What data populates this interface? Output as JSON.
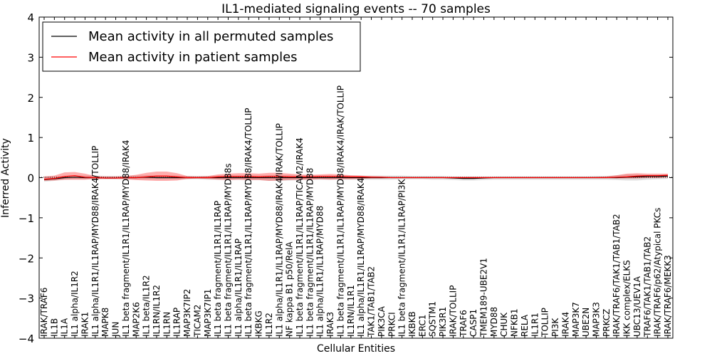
{
  "chart_data": {
    "type": "line",
    "title": "IL1-mediated signaling events -- 70 samples",
    "xlabel": "Cellular Entities",
    "ylabel": "Inferred Activity",
    "ylim": [
      -4,
      4
    ],
    "yticks": [
      -4,
      -3,
      -2,
      -1,
      0,
      1,
      2,
      3,
      4
    ],
    "grid": false,
    "legend_position": "top-left",
    "categories": [
      "IRAK/TRAF6",
      "IL1B",
      "IL1A",
      "IL1 alpha/IL1R2",
      "IRAK1",
      "IL1 alpha/IL1R1/IL1RAP/MYD88/IRAK4/TOLLIP",
      "MAPK8",
      "JUN",
      "IL1 beta fragment/IL1R1/IL1RAP/MYD88/IRAK4",
      "MAP2K6",
      "IL1 beta/IL1R2",
      "IL1RN/IL1R2",
      "IL1RN",
      "IL1RAP",
      "MAP3K7IP2",
      "TICAM2",
      "MAP3K7IP1",
      "IL1 beta fragment/IL1R1/IL1RAP",
      "IL1 beta fragment/IL1R1/IL1RAP/MYD88s",
      "IL1 alpha/IL1R1/IL1RAP",
      "IL1 beta fragment/IL1R1/IL1RAP/MYD88/IRAK4/TOLLIP",
      "IKBKG",
      "IL1R2",
      "IL1 alpha/IL1R1/IL1RAP/MYD88/IRAK4/IRAK/TOLLIP",
      "NF kappa B1 p50/RelA",
      "IL1 beta fragment/IL1R1/IL1RAP/TICAM2/IRAK4",
      "IL1 beta fragment/IL1R1/IL1RAP/MYD88",
      "IL1 alpha/IL1R1/IL1RAP/MYD88",
      "IRAK3",
      "IL1 beta fragment/IL1R1/IL1RAP/MYD88/IRAK4/IRAK/TOLLIP",
      "IL1RN/IL1R1",
      "IL1 alpha/IL1R1/IL1RAP/MYD88/IRAK4",
      "TAK1/TAB1/TAB2",
      "PIK3CA",
      "PRKCI",
      "IL1 beta fragment/IL1R1/IL1RAP/PI3K",
      "IKBKB",
      "ERC1",
      "SQSTM1",
      "PIK3R1",
      "IRAK/TOLLIP",
      "TRAF6",
      "CASP1",
      "TMEM189-UBE2V1",
      "MYD88",
      "CHUK",
      "NFKB1",
      "RELA",
      "IL1R1",
      "TOLLIP",
      "PI3K",
      "IRAK4",
      "MAP3K7",
      "UBE2N",
      "MAP3K3",
      "PRKCZ",
      "IRAK/TRAF6/TAK1/TAB1/TAB2",
      "IKK complex/ELKS",
      "UBC13/UEV1A",
      "TRAF6/TAK1/TAB1/TAB2",
      "IRAK/TRAF6/p62/Atypical PKCs",
      "IRAK/TRAF6/MEKK3"
    ],
    "series": [
      {
        "name": "Mean activity in all permuted samples",
        "color": "#000000",
        "values": [
          -0.05,
          -0.03,
          0.0,
          0.01,
          0.0,
          0.0,
          -0.01,
          -0.01,
          0.0,
          0.0,
          0.01,
          0.0,
          0.0,
          0.0,
          0.0,
          0.0,
          0.0,
          0.0,
          0.0,
          0.0,
          0.0,
          0.0,
          0.0,
          0.0,
          0.0,
          0.0,
          0.0,
          0.0,
          0.0,
          0.0,
          0.0,
          0.0,
          0.0,
          0.0,
          0.0,
          0.0,
          0.0,
          0.0,
          0.0,
          0.0,
          -0.01,
          -0.02,
          -0.02,
          -0.01,
          0.0,
          0.0,
          0.0,
          0.0,
          0.0,
          0.0,
          0.0,
          0.0,
          0.0,
          0.0,
          0.0,
          0.0,
          0.0,
          0.01,
          0.02,
          0.03,
          0.03,
          0.04
        ],
        "band_low": [
          -0.1,
          -0.08,
          -0.05,
          -0.04,
          -0.04,
          -0.04,
          -0.04,
          -0.04,
          -0.04,
          -0.04,
          -0.04,
          -0.04,
          -0.04,
          -0.04,
          -0.04,
          -0.04,
          -0.05,
          -0.05,
          -0.05,
          -0.05,
          -0.06,
          -0.06,
          -0.08,
          -0.08,
          -0.07,
          -0.06,
          -0.05,
          -0.05,
          -0.05,
          -0.05,
          -0.05,
          -0.05,
          -0.05,
          -0.05,
          -0.05,
          -0.04,
          -0.04,
          -0.04,
          -0.05,
          -0.05,
          -0.06,
          -0.07,
          -0.07,
          -0.06,
          -0.05,
          -0.05,
          -0.05,
          -0.05,
          -0.05,
          -0.05,
          -0.05,
          -0.05,
          -0.05,
          -0.05,
          -0.05,
          -0.05,
          -0.06,
          -0.07,
          -0.07,
          -0.05,
          -0.04,
          -0.03
        ],
        "band_high": [
          0.02,
          0.03,
          0.04,
          0.05,
          0.05,
          0.05,
          0.04,
          0.04,
          0.05,
          0.05,
          0.06,
          0.05,
          0.05,
          0.05,
          0.04,
          0.04,
          0.04,
          0.05,
          0.05,
          0.05,
          0.05,
          0.05,
          0.06,
          0.06,
          0.06,
          0.05,
          0.05,
          0.05,
          0.05,
          0.05,
          0.05,
          0.05,
          0.05,
          0.05,
          0.05,
          0.05,
          0.04,
          0.04,
          0.04,
          0.04,
          0.03,
          0.03,
          0.03,
          0.03,
          0.03,
          0.03,
          0.03,
          0.03,
          0.03,
          0.03,
          0.03,
          0.03,
          0.03,
          0.03,
          0.04,
          0.04,
          0.06,
          0.08,
          0.08,
          0.07,
          0.07,
          0.07
        ]
      },
      {
        "name": "Mean activity in patient samples",
        "color": "#ff0000",
        "values": [
          -0.04,
          -0.02,
          0.03,
          0.05,
          0.01,
          0.0,
          -0.01,
          -0.01,
          0.0,
          0.0,
          0.02,
          0.04,
          0.04,
          0.02,
          0.0,
          0.0,
          0.0,
          0.02,
          0.03,
          0.03,
          0.03,
          0.02,
          0.03,
          0.03,
          0.02,
          0.02,
          0.02,
          0.03,
          0.03,
          0.03,
          0.02,
          0.02,
          0.01,
          0.01,
          0.0,
          0.0,
          0.0,
          0.0,
          0.0,
          0.0,
          0.0,
          0.0,
          0.0,
          0.0,
          0.0,
          0.0,
          0.0,
          0.0,
          0.0,
          0.0,
          0.0,
          0.0,
          0.0,
          0.0,
          0.0,
          0.0,
          0.01,
          0.02,
          0.04,
          0.05,
          0.05,
          0.06
        ],
        "band_low": [
          -0.08,
          -0.07,
          -0.05,
          -0.05,
          -0.05,
          -0.03,
          -0.03,
          -0.03,
          -0.04,
          -0.06,
          -0.07,
          -0.08,
          -0.08,
          -0.07,
          -0.03,
          -0.02,
          -0.03,
          -0.05,
          -0.06,
          -0.05,
          -0.06,
          -0.06,
          -0.08,
          -0.07,
          -0.06,
          -0.05,
          -0.05,
          -0.04,
          -0.05,
          -0.04,
          -0.04,
          -0.03,
          -0.02,
          -0.02,
          -0.01,
          -0.01,
          -0.01,
          -0.01,
          -0.01,
          -0.01,
          -0.01,
          -0.01,
          -0.01,
          -0.01,
          -0.01,
          -0.01,
          -0.01,
          -0.01,
          -0.01,
          -0.01,
          -0.01,
          -0.01,
          -0.01,
          -0.01,
          -0.01,
          -0.01,
          -0.02,
          -0.02,
          -0.02,
          -0.01,
          -0.01,
          0.0
        ],
        "band_high": [
          0.03,
          0.05,
          0.13,
          0.14,
          0.1,
          0.04,
          0.03,
          0.03,
          0.04,
          0.07,
          0.12,
          0.15,
          0.15,
          0.11,
          0.04,
          0.03,
          0.04,
          0.08,
          0.1,
          0.11,
          0.11,
          0.1,
          0.12,
          0.12,
          0.1,
          0.08,
          0.07,
          0.08,
          0.09,
          0.08,
          0.06,
          0.05,
          0.04,
          0.03,
          0.02,
          0.02,
          0.02,
          0.02,
          0.02,
          0.02,
          0.02,
          0.02,
          0.02,
          0.02,
          0.02,
          0.02,
          0.02,
          0.02,
          0.02,
          0.02,
          0.02,
          0.02,
          0.02,
          0.02,
          0.02,
          0.03,
          0.06,
          0.1,
          0.11,
          0.1,
          0.1,
          0.1
        ]
      }
    ]
  }
}
